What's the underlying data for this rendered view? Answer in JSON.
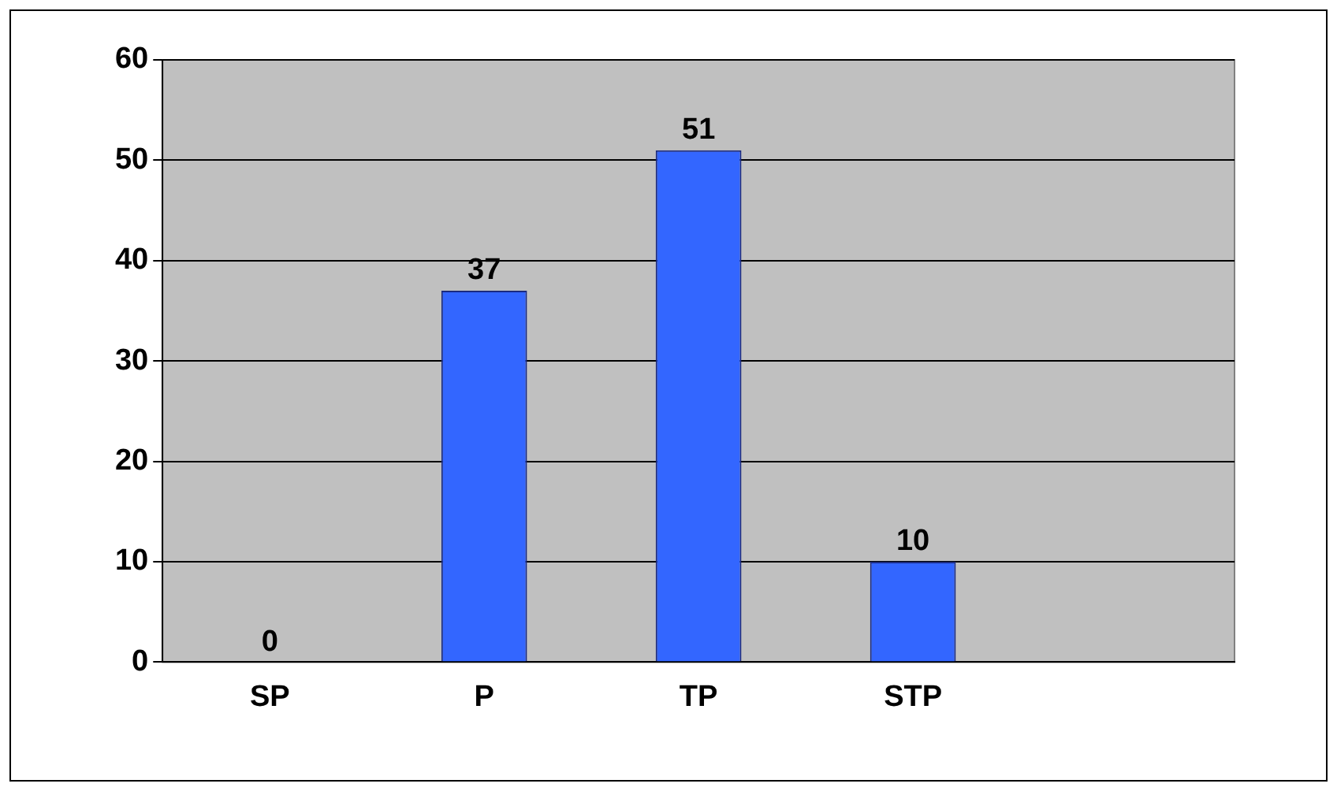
{
  "chart_data": {
    "type": "bar",
    "categories": [
      "SP",
      "P",
      "TP",
      "STP",
      null
    ],
    "values": [
      0,
      37,
      51,
      10,
      null
    ],
    "color": "#3366ff",
    "ylim": [
      0,
      60
    ],
    "yticks": [
      0,
      10,
      20,
      30,
      40,
      50,
      60
    ],
    "grid": "y",
    "data_labels": true,
    "legend": false
  }
}
